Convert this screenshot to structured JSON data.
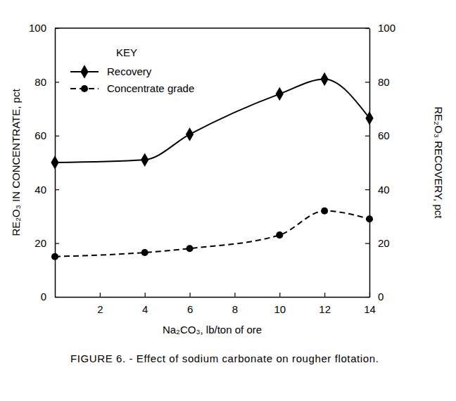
{
  "chart_data": {
    "type": "line",
    "title": "FIGURE 6. - Effect of sodium carbonate on rougher flotation.",
    "x_label": "Na₂CO₃, lb/ton of ore",
    "y_label": "RE₂O₃ IN CONCENTRATE, pct",
    "y2_label": "RE₂O₃ RECOVERY, pct",
    "legend_title": "KEY",
    "legend": "upper left",
    "x": [
      0,
      4,
      6,
      10,
      12,
      14
    ],
    "xlim": [
      0,
      14
    ],
    "xticks": [
      2,
      4,
      6,
      8,
      10,
      12,
      14
    ],
    "ylim": [
      0,
      100
    ],
    "yticks": [
      0,
      20,
      40,
      60,
      80,
      100
    ],
    "y2lim": [
      0,
      100
    ],
    "y2ticks": [
      0,
      20,
      40,
      60,
      80,
      100
    ],
    "series": [
      {
        "name": "Recovery",
        "color": "#000000",
        "axis": "y2",
        "marker": "diamond",
        "line_style": "solid",
        "values": [
          50,
          51,
          60.5,
          75.5,
          81,
          66.5
        ]
      },
      {
        "name": "Concentrate grade",
        "color": "#000000",
        "marker": "circle",
        "line_style": "dashed",
        "values": [
          15,
          16.5,
          18,
          23,
          32,
          29
        ]
      }
    ]
  }
}
